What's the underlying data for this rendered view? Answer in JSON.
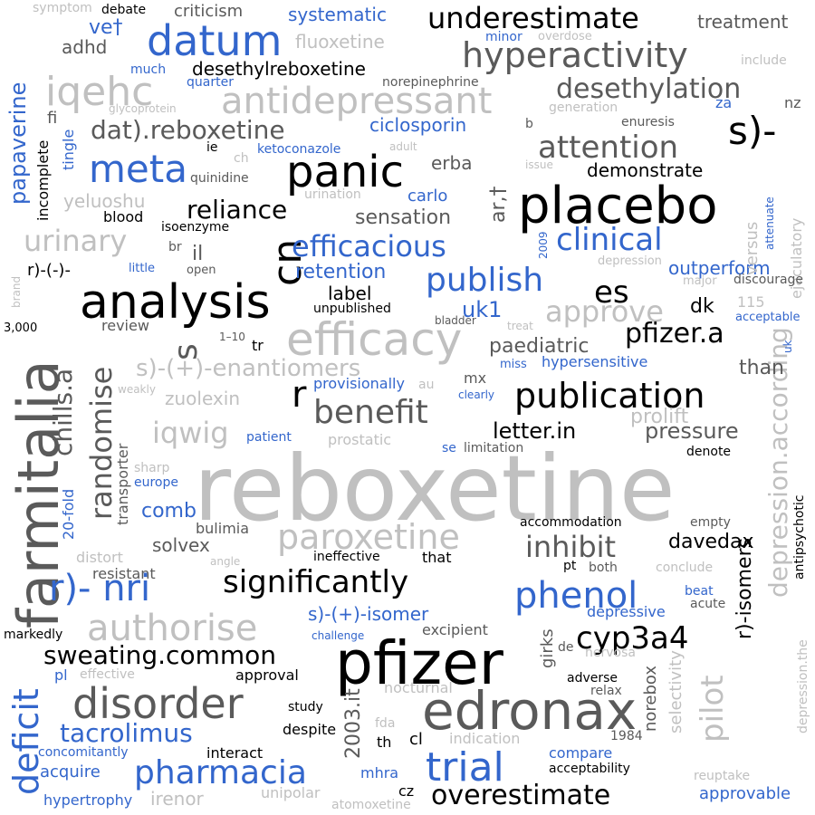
{
  "palette": {
    "black": "#000000",
    "dark_gray": "#5a5a5a",
    "gray": "#9b9b9b",
    "light_gray": "#c0c0c0",
    "blue": "#3366cc"
  },
  "words": {
    "reboxetine": "reboxetine",
    "farmitalia": "farmitalia",
    "pfizer": "pfizer",
    "edronax": "edronax",
    "analysis": "analysis",
    "placebo": "placebo",
    "panic": "panic",
    "efficacy": "efficacy",
    "disorder": "disorder",
    "datum": "datum",
    "antidepressant": "antidepressant",
    "hyperactivity": "hyperactivity",
    "iqehc": "iqehc",
    "meta": "meta",
    "publication": "publication",
    "authorise": "authorise",
    "paroxetine": "paroxetine",
    "trial": "trial",
    "pharmacia": "pharmacia",
    "phenol": "phenol",
    "deficit": "deficit",
    "significantly": "significantly",
    "underestimate": "underestimate",
    "s_minus": "s)-",
    "benefit": "benefit",
    "attention": "attention",
    "desethylation": "desethylation",
    "cn": "cn",
    "nri": "r)- nri",
    "clinical": "clinical",
    "efficacious": "efficacious",
    "publish": "publish",
    "approve": "approve",
    "pfizer_a": "pfizer.a",
    "sweating": "sweating.common",
    "cyp3a4": "cyp3a4",
    "overestimate": "overestimate",
    "tacrolimus": "tacrolimus",
    "inhibit": "inhibit",
    "depression_according": "depression.according",
    "pilot": "pilot",
    "randomise": "randomise",
    "chills": "chills.a",
    "papaverine": "papaverine",
    "urinary": "urinary",
    "dat_reboxetine": "dat).reboxetine",
    "reliance": "reliance",
    "desethylreboxetine": "desethylreboxetine",
    "s_plus_enantiomers": "s)-(+)-enantiomers",
    "iqwig": "iqwig",
    "r": "r",
    "s": "s",
    "es": "es",
    "retention": "retention",
    "letter_in": "letter.in",
    "pressure": "pressure",
    "prolift": "prolift",
    "s_plus_isomer": "s)-(+)-isomer",
    "r_isomers": "r)-isomers",
    "comb": "comb",
    "davedax": "davedax",
    "uk1": "uk1",
    "ciclosporin": "ciclosporin",
    "demonstrate": "demonstrate",
    "sensation": "sensation",
    "outperform": "outperform",
    "systematic": "systematic",
    "fluoxetine": "fluoxetine",
    "treatment": "treatment",
    "adhd": "adhd",
    "vet": "ve†",
    "norepinephrine": "norepinephrine",
    "nz": "nz",
    "za": "za",
    "fi": "fi",
    "tingle": "tingle",
    "incomplete": "incomplete",
    "ketoconazole": "ketoconazole",
    "ie": "ie",
    "ch": "ch",
    "quinidine": "quinidine",
    "yeluoshu": "yeluoshu",
    "blood": "blood",
    "isoenzyme": "isoenzyme",
    "erba": "erba",
    "ar_t": "ar,†",
    "carlo": "carlo",
    "urination": "urination",
    "versus": "versus",
    "ejaculatory": "ejaculatory",
    "attenuate": "attenuate",
    "enuresis": "enuresis",
    "issue": "issue",
    "adult": "adult",
    "generation": "generation",
    "b": "b",
    "glycoprotein": "glycoprotein",
    "quarter": "quarter",
    "much": "much",
    "minor": "minor",
    "overdose": "overdose",
    "include": "include",
    "criticism": "criticism",
    "symptom": "symptom",
    "debate": "debate",
    "il": "il",
    "br": "br",
    "r_minus_minus": "r)-(-)-",
    "little": "little",
    "open": "open",
    "label": "label",
    "unpublished": "unpublished",
    "dk": "dk",
    "depression": "depression",
    "major": "major",
    "discourage": "discourage",
    "n115": "115",
    "acceptable": "acceptable",
    "uk": "uk",
    "brand": "brand",
    "n3000": "3,000",
    "review": "review",
    "n1_10": "1–10",
    "tr": "tr",
    "bladder": "bladder",
    "treat": "treat",
    "paediatric": "paediatric",
    "hypersensitive": "hypersensitive",
    "than": "than",
    "miss": "miss",
    "mx": "mx",
    "provisionally": "provisionally",
    "au": "au",
    "clearly": "clearly",
    "weakly": "weakly",
    "zuolexin": "zuolexin",
    "prostatic": "prostatic",
    "patient": "patient",
    "se": "se",
    "limitation": "limitation",
    "denote": "denote",
    "antipsychotic": "antipsychotic",
    "transporter": "transporter",
    "sharp": "sharp",
    "europe": "europe",
    "n20fold": "20-fold",
    "bulimia": "bulimia",
    "solvex": "solvex",
    "accommodation": "accommodation",
    "empty": "empty",
    "distort": "distort",
    "resistant": "resistant",
    "angle": "angle",
    "ineffective": "ineffective",
    "that": "that",
    "pt": "pt",
    "both": "both",
    "conclude": "conclude",
    "beat": "beat",
    "acute": "acute",
    "markedly": "markedly",
    "challenge": "challenge",
    "excipient": "excipient",
    "girks": "girks",
    "de": "de",
    "depressive": "depressive",
    "nervosa": "nervosa",
    "norebox": "norebox",
    "selectivity": "selectivity",
    "depression_the": "depression.the",
    "pl": "pl",
    "effective": "effective",
    "approval": "approval",
    "adverse": "adverse",
    "relax": "relax",
    "nocturnal": "nocturnal",
    "it2003": "2003.it",
    "study": "study",
    "despite": "despite",
    "fda": "fda",
    "indication": "indication",
    "n1984": "1984",
    "th": "th",
    "cl": "cl",
    "concomitantly": "concomitantly",
    "interact": "interact",
    "compare": "compare",
    "acceptability": "acceptability",
    "reuptake": "reuptake",
    "acquire": "acquire",
    "mhra": "mhra",
    "hypertrophy": "hypertrophy",
    "irenor": "irenor",
    "unipolar": "unipolar",
    "atomoxetine": "atomoxetine",
    "cz": "cz",
    "approvable": "approvable",
    "n2009": "2009"
  }
}
